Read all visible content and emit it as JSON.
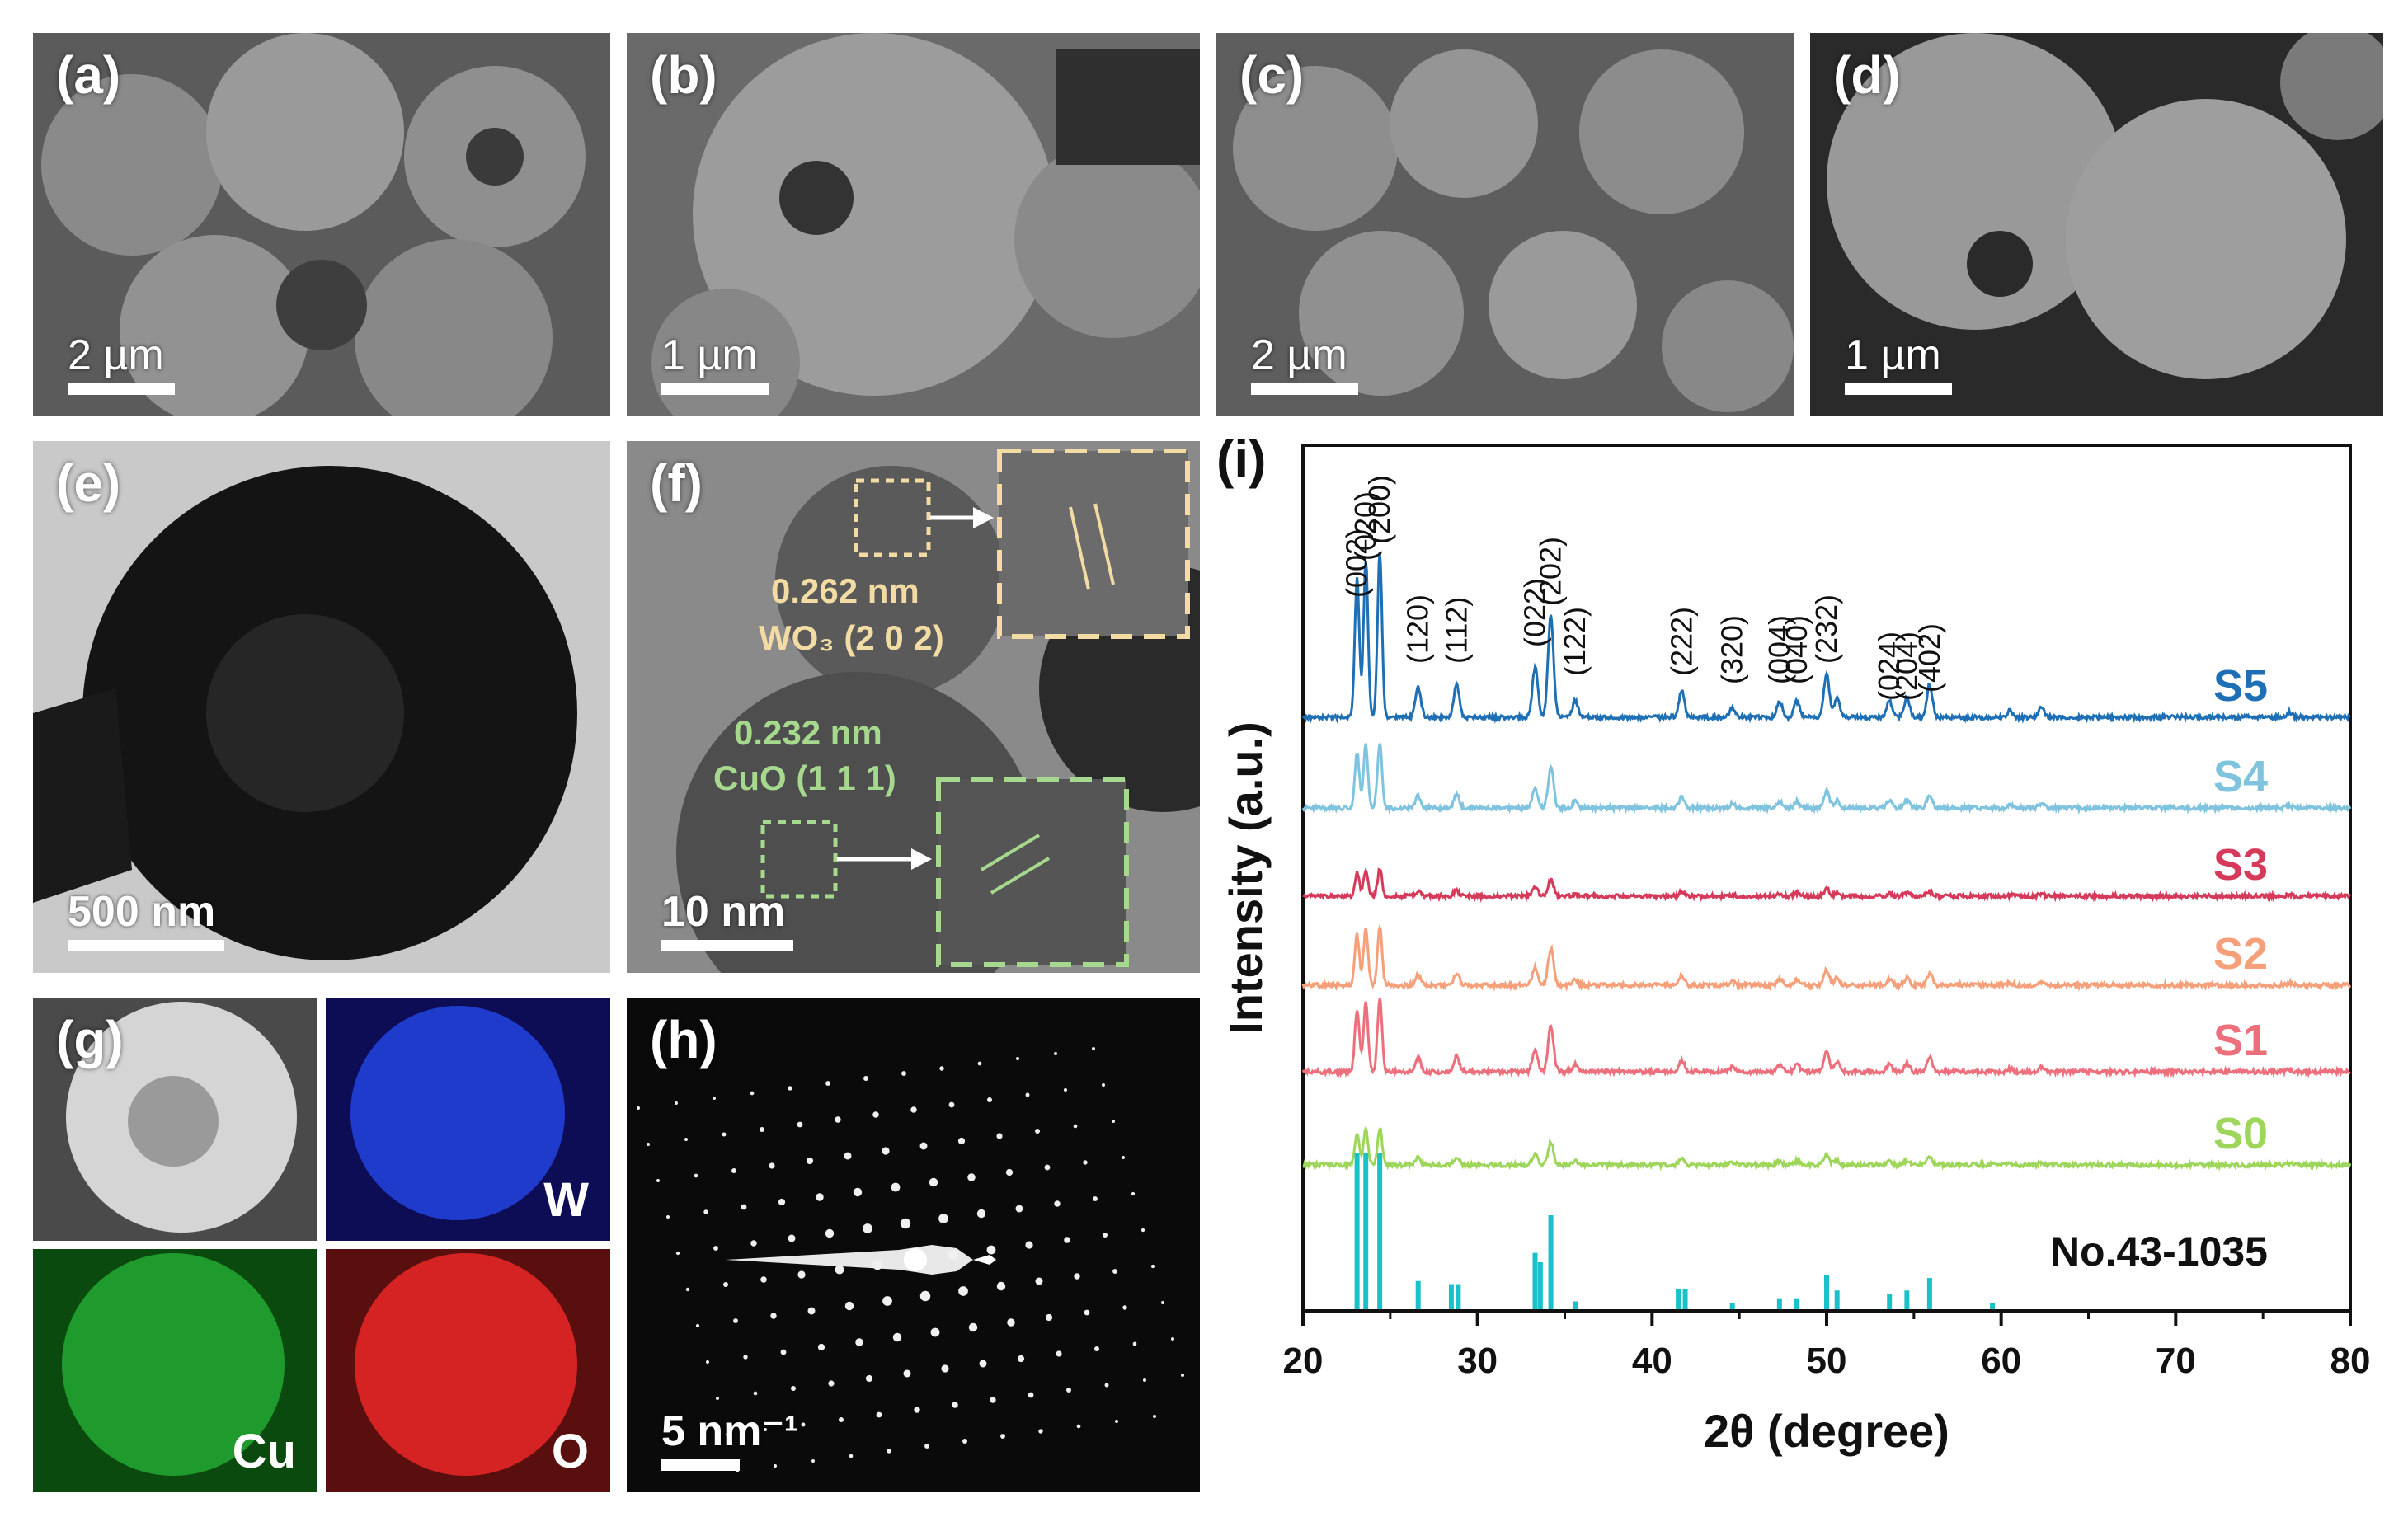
{
  "panels": {
    "a": {
      "label": "(a)",
      "scale": "2 µm"
    },
    "b": {
      "label": "(b)",
      "scale": "1 µm"
    },
    "c": {
      "label": "(c)",
      "scale": "2 µm"
    },
    "d": {
      "label": "(d)",
      "scale": "1 µm"
    },
    "e": {
      "label": "(e)",
      "scale": "500 nm"
    },
    "f": {
      "label": "(f)",
      "scale": "10 nm",
      "wo3_spacing": "0.262 nm",
      "wo3_plane": "WO₃ (2 0 2)",
      "cuo_spacing": "0.232 nm",
      "cuo_plane": "CuO (1 1 1)"
    },
    "g": {
      "label": "(g)",
      "maps": [
        "W",
        "Cu",
        "O"
      ]
    },
    "h": {
      "label": "(h)",
      "scale": "5 nm⁻¹"
    },
    "i": {
      "label": "(i)"
    }
  },
  "colors": {
    "S5": "#1f6fb5",
    "S4": "#7fc3de",
    "S3": "#d63a5a",
    "S2": "#f5a07a",
    "S1": "#ee6f7c",
    "S0": "#9ed65b",
    "ref": "#19c2c9",
    "wo3_text": "#f2dca3",
    "cuo_text": "#a6d98e"
  },
  "chart_data": {
    "type": "line",
    "xlabel": "2θ (degree)",
    "ylabel": "Intensity (a.u.)",
    "xlim": [
      20,
      80
    ],
    "xticks": [
      20,
      30,
      40,
      50,
      60,
      70,
      80
    ],
    "series": [
      {
        "name": "S5",
        "peak_scale": 1.0
      },
      {
        "name": "S4",
        "peak_scale": 0.8
      },
      {
        "name": "S3",
        "peak_scale": 0.55
      },
      {
        "name": "S2",
        "peak_scale": 0.8
      },
      {
        "name": "S1",
        "peak_scale": 0.9
      },
      {
        "name": "S0",
        "peak_scale": 0.65
      }
    ],
    "peaks": [
      {
        "x": 23.1,
        "h": 0.85,
        "hkl": "(002)"
      },
      {
        "x": 23.6,
        "h": 0.95,
        "hkl": "(020)"
      },
      {
        "x": 24.4,
        "h": 1.0,
        "hkl": "(200)"
      },
      {
        "x": 26.6,
        "h": 0.18,
        "hkl": "(120)"
      },
      {
        "x": 28.8,
        "h": 0.2,
        "hkl": "(112)"
      },
      {
        "x": 33.3,
        "h": 0.3,
        "hkl": "(022)"
      },
      {
        "x": 34.2,
        "h": 0.62,
        "hkl": "(202)"
      },
      {
        "x": 35.6,
        "h": 0.1,
        "hkl": "(122)"
      },
      {
        "x": 41.7,
        "h": 0.16,
        "hkl": "(222)"
      },
      {
        "x": 44.6,
        "h": 0.06,
        "hkl": "(320)"
      },
      {
        "x": 47.3,
        "h": 0.1,
        "hkl": "(004)"
      },
      {
        "x": 48.3,
        "h": 0.1,
        "hkl": "(040)"
      },
      {
        "x": 50.0,
        "h": 0.26,
        "hkl": "(232)"
      },
      {
        "x": 53.6,
        "h": 0.1,
        "hkl": "(024)"
      },
      {
        "x": 54.6,
        "h": 0.12,
        "hkl": "(204)"
      },
      {
        "x": 55.9,
        "h": 0.2,
        "hkl": "(402)"
      },
      {
        "x": 50.6,
        "h": 0.12
      },
      {
        "x": 60.5,
        "h": 0.04
      },
      {
        "x": 62.3,
        "h": 0.06
      },
      {
        "x": 76.5,
        "h": 0.03
      }
    ],
    "reference": {
      "name": "No.43-1035",
      "sticks": [
        {
          "x": 23.1,
          "h": 1.0
        },
        {
          "x": 23.6,
          "h": 1.0
        },
        {
          "x": 24.4,
          "h": 1.0
        },
        {
          "x": 26.6,
          "h": 0.18
        },
        {
          "x": 28.5,
          "h": 0.16
        },
        {
          "x": 28.9,
          "h": 0.16
        },
        {
          "x": 33.3,
          "h": 0.36
        },
        {
          "x": 33.6,
          "h": 0.3
        },
        {
          "x": 34.2,
          "h": 0.6
        },
        {
          "x": 35.6,
          "h": 0.05
        },
        {
          "x": 41.5,
          "h": 0.13
        },
        {
          "x": 41.9,
          "h": 0.13
        },
        {
          "x": 44.6,
          "h": 0.04
        },
        {
          "x": 47.3,
          "h": 0.07
        },
        {
          "x": 48.3,
          "h": 0.07
        },
        {
          "x": 50.0,
          "h": 0.22
        },
        {
          "x": 50.6,
          "h": 0.12
        },
        {
          "x": 53.6,
          "h": 0.1
        },
        {
          "x": 54.6,
          "h": 0.12
        },
        {
          "x": 55.9,
          "h": 0.2
        },
        {
          "x": 59.5,
          "h": 0.04
        }
      ]
    }
  }
}
